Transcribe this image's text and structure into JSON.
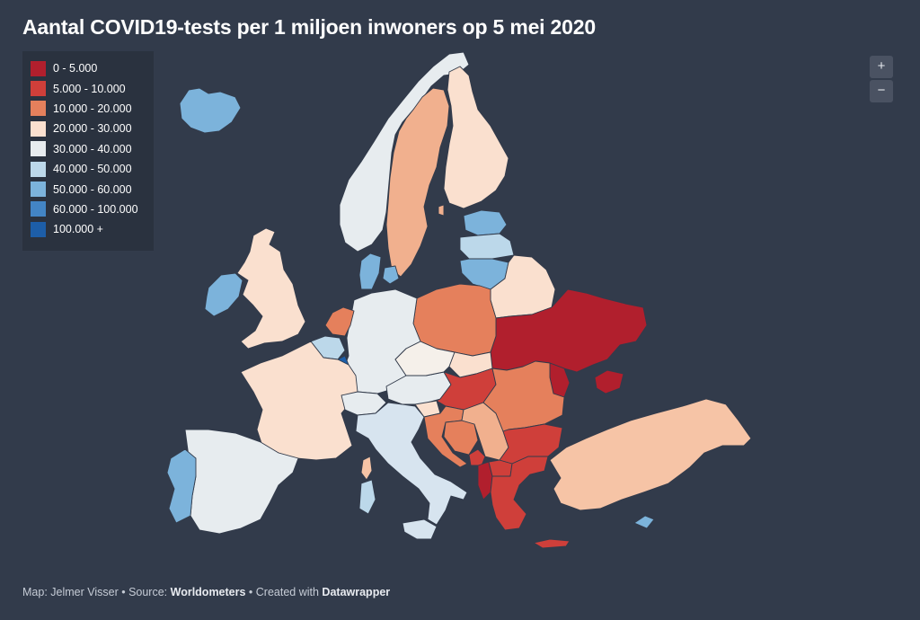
{
  "title": "Aantal COVID19-tests per 1 miljoen inwoners op 5 mei 2020",
  "legend": [
    {
      "label": "0 - 5.000",
      "color": "#b11f2d"
    },
    {
      "label": "5.000 - 10.000",
      "color": "#cf3f3a"
    },
    {
      "label": "10.000 - 20.000",
      "color": "#e5805c"
    },
    {
      "label": "20.000 - 30.000",
      "color": "#fae0cf"
    },
    {
      "label": "30.000 - 40.000",
      "color": "#e7ecef"
    },
    {
      "label": "40.000 - 50.000",
      "color": "#bcd8ea"
    },
    {
      "label": "50.000 - 60.000",
      "color": "#7cb3db"
    },
    {
      "label": "60.000 - 100.000",
      "color": "#4385c5"
    },
    {
      "label": "100.000 +",
      "color": "#1d5ea8"
    }
  ],
  "zoom": {
    "in_label": "+",
    "out_label": "−"
  },
  "footer": {
    "map_prefix": "Map: Jelmer Visser • Source: ",
    "source": "Worldometers",
    "created_prefix": " • Created with ",
    "tool": "Datawrapper"
  },
  "countries": {
    "iceland": "#7cb3db",
    "ireland": "#7cb3db",
    "united-kingdom": "#fae0cf",
    "norway": "#e7ecef",
    "sweden": "#f1b08e",
    "finland": "#fae0cf",
    "estonia": "#7cb3db",
    "latvia": "#bcd8ea",
    "lithuania": "#7cb3db",
    "belarus": "#fae0cf",
    "ukraine": "#b11f2d",
    "moldova": "#b11f2d",
    "poland": "#e5805c",
    "germany": "#e7ecef",
    "denmark": "#7cb3db",
    "netherlands": "#e5805c",
    "belgium": "#bcd8ea",
    "luxembourg": "#1d5ea8",
    "france": "#fae0cf",
    "spain": "#e7ecef",
    "portugal": "#7cb3db",
    "switzerland": "#e7ecef",
    "austria": "#e7ecef",
    "czechia": "#f5f0ea",
    "slovakia": "#fae0cf",
    "hungary": "#cf3f3a",
    "slovenia": "#fae0cf",
    "croatia": "#e5805c",
    "bosnia": "#e5805c",
    "serbia": "#f1b08e",
    "montenegro": "#cf3f3a",
    "albania": "#b11f2d",
    "north-macedonia": "#cf3f3a",
    "bulgaria": "#cf3f3a",
    "romania": "#e5805c",
    "greece": "#cf3f3a",
    "turkey": "#f6c4a6",
    "italy": "#d7e4ef",
    "cyprus": "#7cb3db",
    "crete": "#cf3f3a",
    "corsica": "#f6c4a6",
    "sardinia": "#bcd8ea",
    "sicily": "#d7e4ef",
    "gotland": "#f1b08e",
    "crimea": "#b11f2d"
  }
}
